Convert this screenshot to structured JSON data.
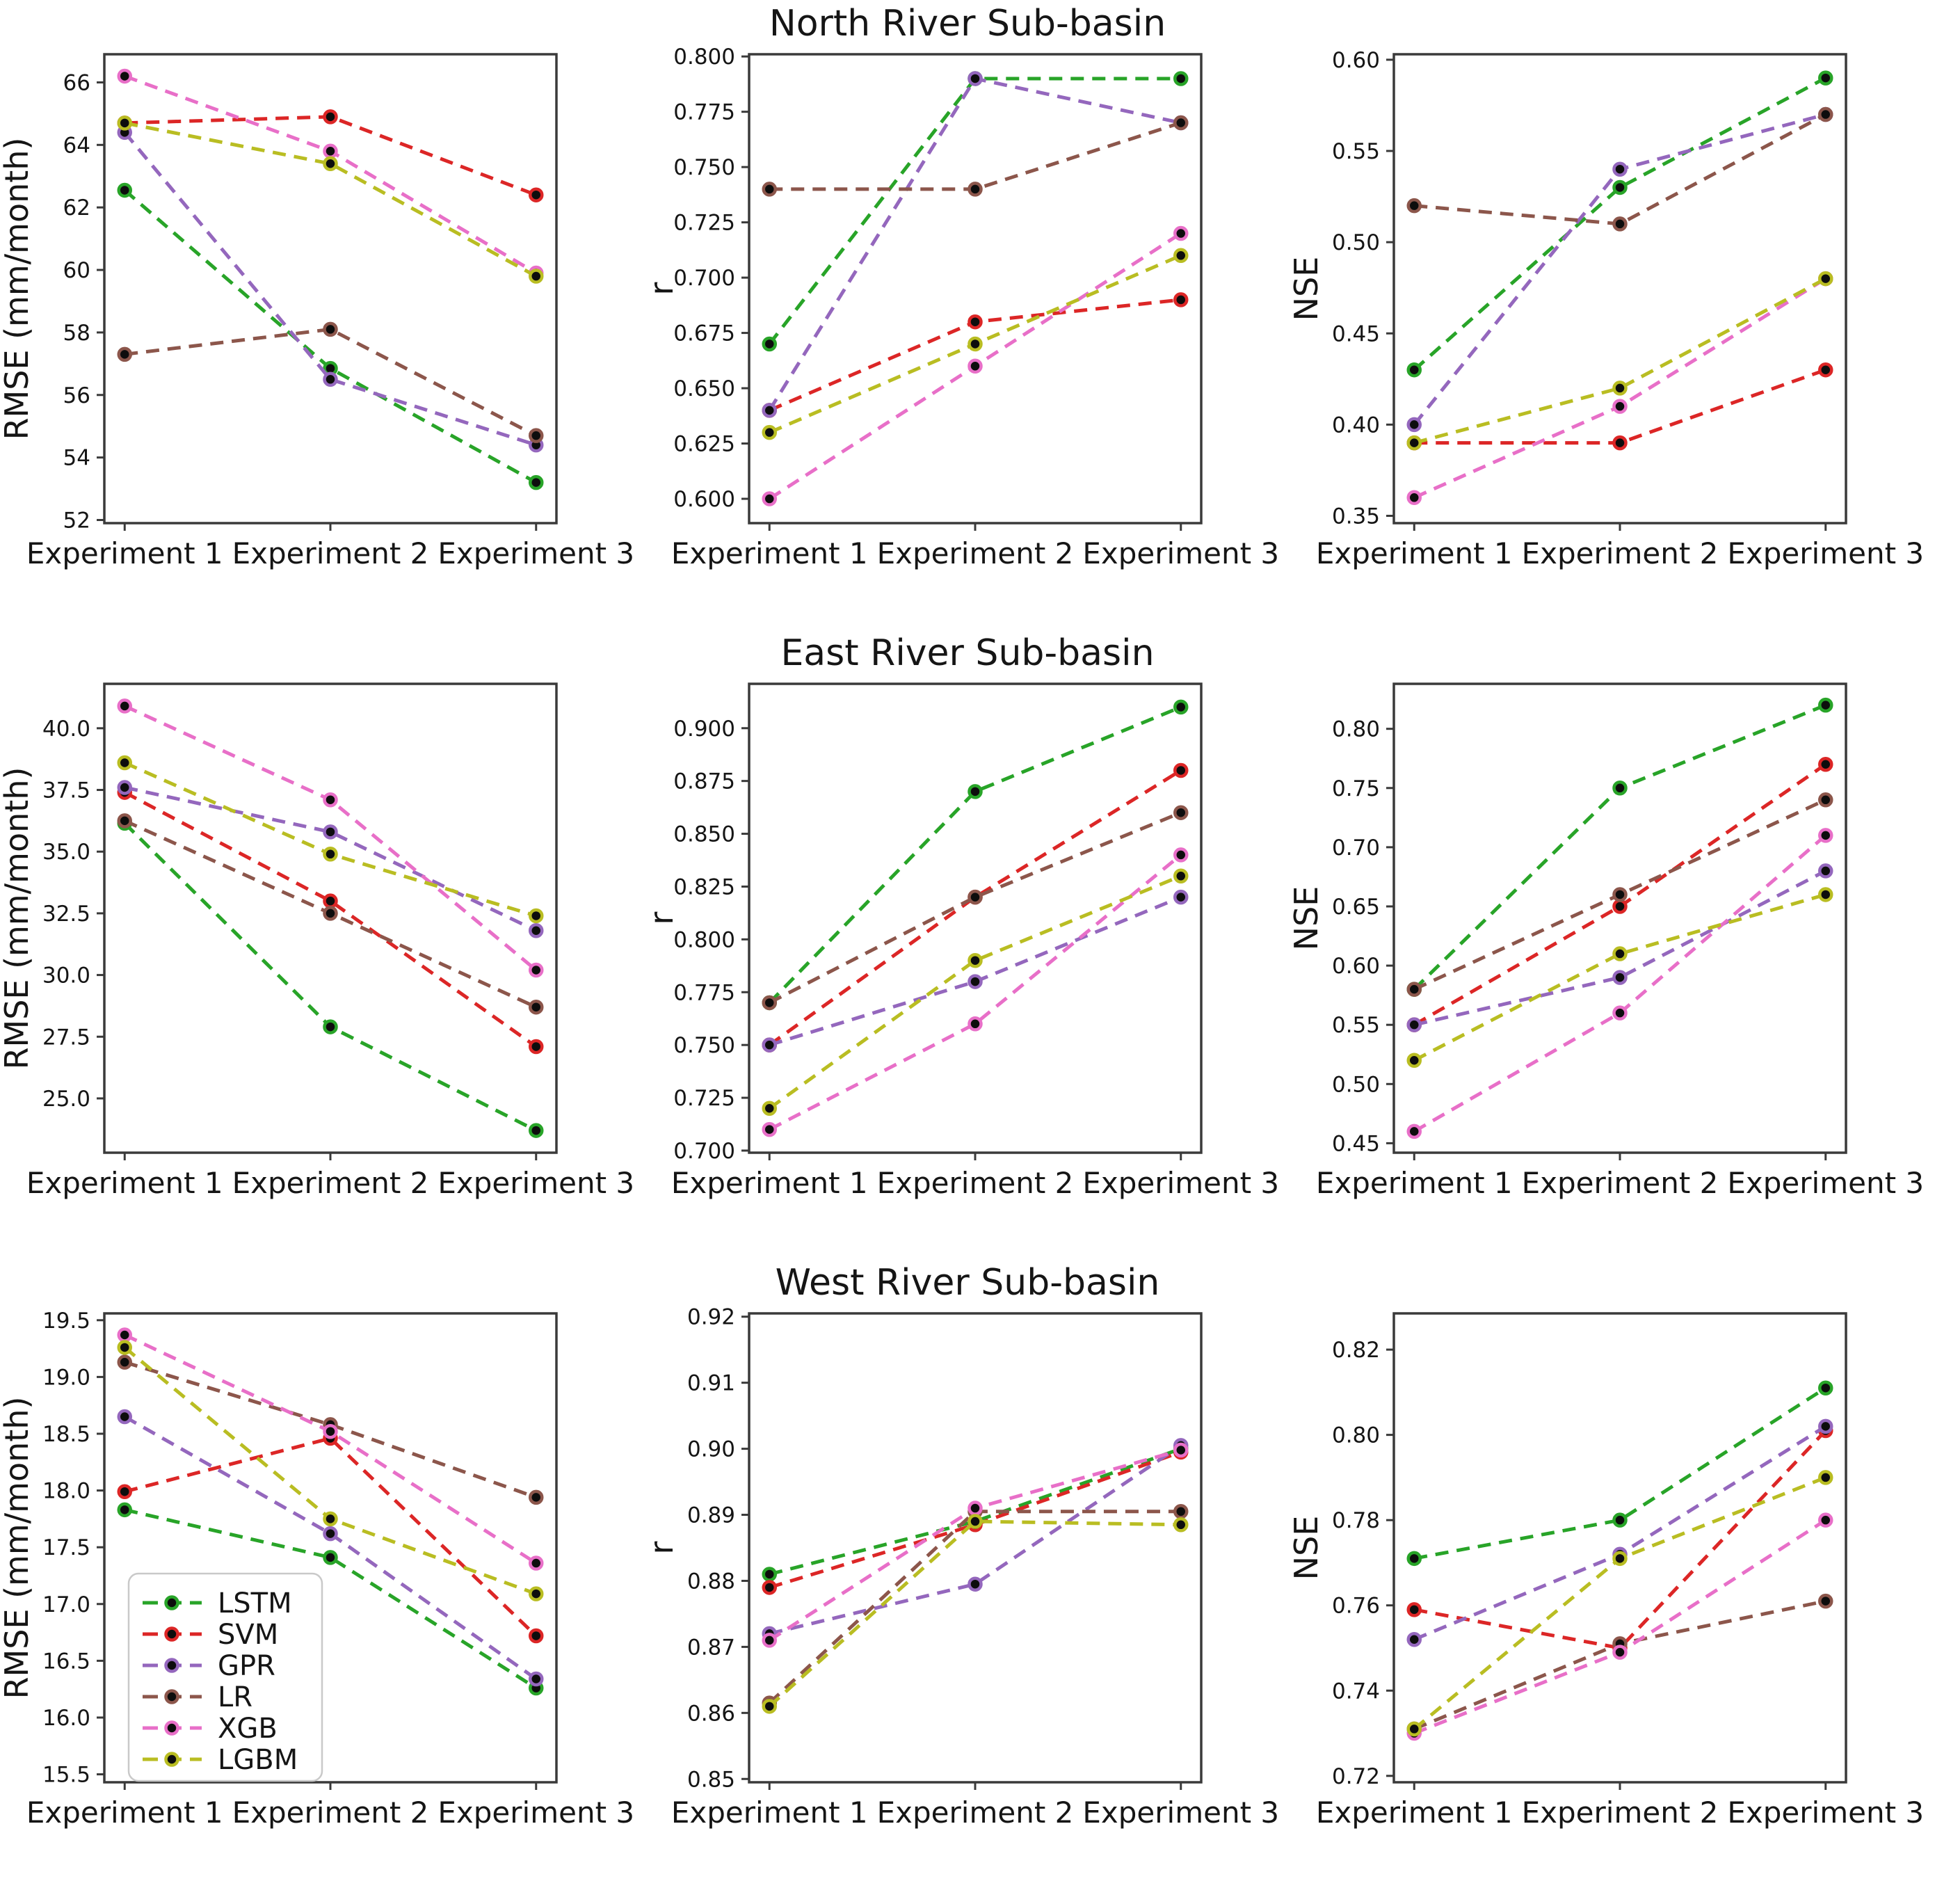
{
  "figure": {
    "background": "#ffffff",
    "text_color": "#151515",
    "axis_color": "#3a3a3a",
    "marker_fill": "#0d0d0d",
    "line_style": "dashed",
    "categories": [
      "Experiment 1",
      "Experiment 2",
      "Experiment 3"
    ],
    "rows": [
      {
        "title": "North River Sub-basin"
      },
      {
        "title": "East River Sub-basin"
      },
      {
        "title": "West River Sub-basin"
      }
    ],
    "legend": {
      "position": "lower-left of West RMSE subplot",
      "entries": [
        {
          "label": "LSTM",
          "color": "#28a428"
        },
        {
          "label": "SVM",
          "color": "#dc2626"
        },
        {
          "label": "GPR",
          "color": "#9467bd"
        },
        {
          "label": "LR",
          "color": "#8c564b"
        },
        {
          "label": "XGB",
          "color": "#e86fc8"
        },
        {
          "label": "LGBM",
          "color": "#b9bd22"
        }
      ]
    }
  },
  "chart_data": [
    {
      "id": "north-rmse",
      "type": "line",
      "row": 0,
      "title": "North River Sub-basin",
      "ylabel": "RMSE (mm/month)",
      "grid": false,
      "legend": false,
      "categories": [
        "Experiment 1",
        "Experiment 2",
        "Experiment 3"
      ],
      "ylim": [
        51.9,
        66.9
      ],
      "yticks": [
        52,
        54,
        56,
        58,
        60,
        62,
        64,
        66
      ],
      "ytick_labels": [
        "52",
        "54",
        "56",
        "58",
        "60",
        "62",
        "64",
        "66"
      ],
      "series": [
        {
          "name": "LSTM",
          "values": [
            62.55,
            56.85,
            53.2
          ]
        },
        {
          "name": "SVM",
          "values": [
            64.7,
            64.9,
            62.4
          ]
        },
        {
          "name": "GPR",
          "values": [
            64.4,
            56.5,
            54.4
          ]
        },
        {
          "name": "LR",
          "values": [
            57.3,
            58.1,
            54.7
          ]
        },
        {
          "name": "XGB",
          "values": [
            66.2,
            63.8,
            59.9
          ]
        },
        {
          "name": "LGBM",
          "values": [
            64.7,
            63.4,
            59.8
          ]
        }
      ]
    },
    {
      "id": "north-r",
      "type": "line",
      "row": 0,
      "title": "North River Sub-basin",
      "ylabel": "r",
      "grid": false,
      "legend": false,
      "categories": [
        "Experiment 1",
        "Experiment 2",
        "Experiment 3"
      ],
      "ylim": [
        0.589,
        0.801
      ],
      "yticks": [
        0.6,
        0.625,
        0.65,
        0.675,
        0.7,
        0.725,
        0.75,
        0.775,
        0.8
      ],
      "ytick_labels": [
        "0.600",
        "0.625",
        "0.650",
        "0.675",
        "0.700",
        "0.725",
        "0.750",
        "0.775",
        "0.800"
      ],
      "series": [
        {
          "name": "LSTM",
          "values": [
            0.67,
            0.79,
            0.79
          ]
        },
        {
          "name": "SVM",
          "values": [
            0.64,
            0.68,
            0.69
          ]
        },
        {
          "name": "GPR",
          "values": [
            0.64,
            0.79,
            0.77
          ]
        },
        {
          "name": "LR",
          "values": [
            0.74,
            0.74,
            0.77
          ]
        },
        {
          "name": "XGB",
          "values": [
            0.6,
            0.66,
            0.72
          ]
        },
        {
          "name": "LGBM",
          "values": [
            0.63,
            0.67,
            0.71
          ]
        }
      ]
    },
    {
      "id": "north-nse",
      "type": "line",
      "row": 0,
      "title": "North River Sub-basin",
      "ylabel": "NSE",
      "grid": false,
      "legend": false,
      "categories": [
        "Experiment 1",
        "Experiment 2",
        "Experiment 3"
      ],
      "ylim": [
        0.346,
        0.603
      ],
      "yticks": [
        0.35,
        0.4,
        0.45,
        0.5,
        0.55,
        0.6
      ],
      "ytick_labels": [
        "0.35",
        "0.40",
        "0.45",
        "0.50",
        "0.55",
        "0.60"
      ],
      "series": [
        {
          "name": "LSTM",
          "values": [
            0.43,
            0.53,
            0.59
          ]
        },
        {
          "name": "SVM",
          "values": [
            0.39,
            0.39,
            0.43
          ]
        },
        {
          "name": "GPR",
          "values": [
            0.4,
            0.54,
            0.57
          ]
        },
        {
          "name": "LR",
          "values": [
            0.52,
            0.51,
            0.57
          ]
        },
        {
          "name": "XGB",
          "values": [
            0.36,
            0.41,
            0.48
          ]
        },
        {
          "name": "LGBM",
          "values": [
            0.39,
            0.42,
            0.48
          ]
        }
      ]
    },
    {
      "id": "east-rmse",
      "type": "line",
      "row": 1,
      "title": "East River Sub-basin",
      "ylabel": "RMSE (mm/month)",
      "grid": false,
      "legend": false,
      "categories": [
        "Experiment 1",
        "Experiment 2",
        "Experiment 3"
      ],
      "ylim": [
        22.8,
        41.8
      ],
      "yticks": [
        25.0,
        27.5,
        30.0,
        32.5,
        35.0,
        37.5,
        40.0
      ],
      "ytick_labels": [
        "25.0",
        "27.5",
        "30.0",
        "32.5",
        "35.0",
        "37.5",
        "40.0"
      ],
      "series": [
        {
          "name": "LSTM",
          "values": [
            36.15,
            27.9,
            23.7
          ]
        },
        {
          "name": "SVM",
          "values": [
            37.4,
            33.0,
            27.1
          ]
        },
        {
          "name": "GPR",
          "values": [
            37.6,
            35.8,
            31.8
          ]
        },
        {
          "name": "LR",
          "values": [
            36.25,
            32.5,
            28.7
          ]
        },
        {
          "name": "XGB",
          "values": [
            40.9,
            37.1,
            30.2
          ]
        },
        {
          "name": "LGBM",
          "values": [
            38.6,
            34.9,
            32.4
          ]
        }
      ]
    },
    {
      "id": "east-r",
      "type": "line",
      "row": 1,
      "title": "East River Sub-basin",
      "ylabel": "r",
      "grid": false,
      "legend": false,
      "categories": [
        "Experiment 1",
        "Experiment 2",
        "Experiment 3"
      ],
      "ylim": [
        0.699,
        0.921
      ],
      "yticks": [
        0.7,
        0.725,
        0.75,
        0.775,
        0.8,
        0.825,
        0.85,
        0.875,
        0.9
      ],
      "ytick_labels": [
        "0.700",
        "0.725",
        "0.750",
        "0.775",
        "0.800",
        "0.825",
        "0.850",
        "0.875",
        "0.900"
      ],
      "series": [
        {
          "name": "LSTM",
          "values": [
            0.77,
            0.87,
            0.91
          ]
        },
        {
          "name": "SVM",
          "values": [
            0.75,
            0.82,
            0.88
          ]
        },
        {
          "name": "GPR",
          "values": [
            0.75,
            0.78,
            0.82
          ]
        },
        {
          "name": "LR",
          "values": [
            0.77,
            0.82,
            0.86
          ]
        },
        {
          "name": "XGB",
          "values": [
            0.71,
            0.76,
            0.84
          ]
        },
        {
          "name": "LGBM",
          "values": [
            0.72,
            0.79,
            0.83
          ]
        }
      ]
    },
    {
      "id": "east-nse",
      "type": "line",
      "row": 1,
      "title": "East River Sub-basin",
      "ylabel": "NSE",
      "grid": false,
      "legend": false,
      "categories": [
        "Experiment 1",
        "Experiment 2",
        "Experiment 3"
      ],
      "ylim": [
        0.442,
        0.838
      ],
      "yticks": [
        0.45,
        0.5,
        0.55,
        0.6,
        0.65,
        0.7,
        0.75,
        0.8
      ],
      "ytick_labels": [
        "0.45",
        "0.50",
        "0.55",
        "0.60",
        "0.65",
        "0.70",
        "0.75",
        "0.80"
      ],
      "series": [
        {
          "name": "LSTM",
          "values": [
            0.58,
            0.75,
            0.82
          ]
        },
        {
          "name": "SVM",
          "values": [
            0.55,
            0.65,
            0.77
          ]
        },
        {
          "name": "GPR",
          "values": [
            0.55,
            0.59,
            0.68
          ]
        },
        {
          "name": "LR",
          "values": [
            0.58,
            0.66,
            0.74
          ]
        },
        {
          "name": "XGB",
          "values": [
            0.46,
            0.56,
            0.71
          ]
        },
        {
          "name": "LGBM",
          "values": [
            0.52,
            0.61,
            0.66
          ]
        }
      ]
    },
    {
      "id": "west-rmse",
      "type": "line",
      "row": 2,
      "title": "West River Sub-basin",
      "ylabel": "RMSE (mm/month)",
      "grid": false,
      "legend": true,
      "categories": [
        "Experiment 1",
        "Experiment 2",
        "Experiment 3"
      ],
      "ylim": [
        15.43,
        19.56
      ],
      "yticks": [
        15.5,
        16.0,
        16.5,
        17.0,
        17.5,
        18.0,
        18.5,
        19.0,
        19.5
      ],
      "ytick_labels": [
        "15.5",
        "16.0",
        "16.5",
        "17.0",
        "17.5",
        "18.0",
        "18.5",
        "19.0",
        "19.5"
      ],
      "series": [
        {
          "name": "LSTM",
          "values": [
            17.83,
            17.41,
            16.26
          ]
        },
        {
          "name": "SVM",
          "values": [
            17.99,
            18.46,
            16.72
          ]
        },
        {
          "name": "GPR",
          "values": [
            18.65,
            17.62,
            16.34
          ]
        },
        {
          "name": "LR",
          "values": [
            19.13,
            18.58,
            17.94
          ]
        },
        {
          "name": "XGB",
          "values": [
            19.37,
            18.52,
            17.36
          ]
        },
        {
          "name": "LGBM",
          "values": [
            19.26,
            17.75,
            17.09
          ]
        }
      ]
    },
    {
      "id": "west-r",
      "type": "line",
      "row": 2,
      "title": "West River Sub-basin",
      "ylabel": "r",
      "grid": false,
      "legend": false,
      "categories": [
        "Experiment 1",
        "Experiment 2",
        "Experiment 3"
      ],
      "ylim": [
        0.8495,
        0.9205
      ],
      "yticks": [
        0.85,
        0.86,
        0.87,
        0.88,
        0.89,
        0.9,
        0.91,
        0.92
      ],
      "ytick_labels": [
        "0.85",
        "0.86",
        "0.87",
        "0.88",
        "0.89",
        "0.90",
        "0.91",
        "0.92"
      ],
      "series": [
        {
          "name": "LSTM",
          "values": [
            0.881,
            0.889,
            0.9
          ]
        },
        {
          "name": "SVM",
          "values": [
            0.879,
            0.8885,
            0.8995
          ]
        },
        {
          "name": "GPR",
          "values": [
            0.872,
            0.8795,
            0.9005
          ]
        },
        {
          "name": "LR",
          "values": [
            0.8615,
            0.8905,
            0.8905
          ]
        },
        {
          "name": "XGB",
          "values": [
            0.871,
            0.891,
            0.8998
          ]
        },
        {
          "name": "LGBM",
          "values": [
            0.861,
            0.889,
            0.8885
          ]
        }
      ]
    },
    {
      "id": "west-nse",
      "type": "line",
      "row": 2,
      "title": "West River Sub-basin",
      "ylabel": "NSE",
      "grid": false,
      "legend": false,
      "categories": [
        "Experiment 1",
        "Experiment 2",
        "Experiment 3"
      ],
      "ylim": [
        0.7185,
        0.8285
      ],
      "yticks": [
        0.72,
        0.74,
        0.76,
        0.78,
        0.8,
        0.82
      ],
      "ytick_labels": [
        "0.72",
        "0.74",
        "0.76",
        "0.78",
        "0.80",
        "0.82"
      ],
      "series": [
        {
          "name": "LSTM",
          "values": [
            0.771,
            0.78,
            0.811
          ]
        },
        {
          "name": "SVM",
          "values": [
            0.759,
            0.75,
            0.801
          ]
        },
        {
          "name": "GPR",
          "values": [
            0.752,
            0.772,
            0.802
          ]
        },
        {
          "name": "LR",
          "values": [
            0.731,
            0.751,
            0.761
          ]
        },
        {
          "name": "XGB",
          "values": [
            0.73,
            0.749,
            0.78
          ]
        },
        {
          "name": "LGBM",
          "values": [
            0.731,
            0.771,
            0.79
          ]
        }
      ]
    }
  ]
}
